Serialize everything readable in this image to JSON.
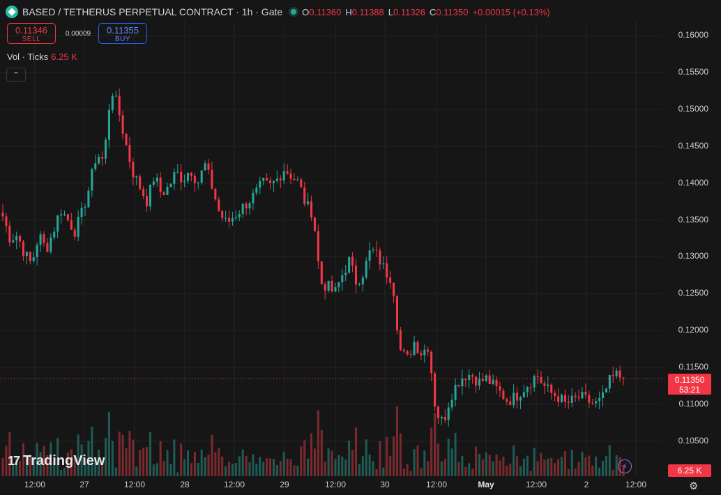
{
  "header": {
    "symbol_title": "BASED / TETHERUS PERPETUAL CONTRACT · 1h · Gate",
    "ohlc": {
      "o_label": "O",
      "o": "0.11360",
      "h_label": "H",
      "h": "0.11388",
      "l_label": "L",
      "l": "0.11326",
      "c_label": "C",
      "c": "0.11350",
      "change": "+0.00015 (+0.13%)"
    }
  },
  "trade": {
    "sell_price": "0.11346",
    "sell_label": "SELL",
    "spread": "0.00009",
    "buy_price": "0.11355",
    "buy_label": "BUY"
  },
  "volume_legend": {
    "label": "Vol · Ticks",
    "value": "6.25 K"
  },
  "colors": {
    "up": "#26a69a",
    "down": "#f23645",
    "up_vol": "#1f5b54",
    "down_vol": "#7a2a2e",
    "background": "#161616",
    "grid": "#242424"
  },
  "price_axis": {
    "labels": [
      "0.16000",
      "0.15500",
      "0.15000",
      "0.14500",
      "0.14000",
      "0.13500",
      "0.13000",
      "0.12500",
      "0.12000",
      "0.11500",
      "0.11000",
      "0.10500"
    ]
  },
  "time_axis": {
    "labels": [
      "12:00",
      "27",
      "12:00",
      "28",
      "12:00",
      "29",
      "12:00",
      "30",
      "12:00",
      "May",
      "12:00",
      "2",
      "12:00"
    ]
  },
  "last_price": {
    "price": "0.11350",
    "countdown": "53:21"
  },
  "volume_tag": "6.25 K",
  "branding": {
    "logo_text": "TradingView",
    "logo_mark": "17"
  },
  "icons": {
    "coin": "based-coin-icon",
    "status": "market-open-dot-icon",
    "collapse": "chevron-up-icon",
    "bolt": "lightning-icon",
    "settings": "gear-icon"
  },
  "chart_data": {
    "type": "candlestick",
    "interval": "1h",
    "ylim": [
      0.1025,
      0.1625
    ],
    "y_ticks": [
      0.16,
      0.155,
      0.15,
      0.145,
      0.14,
      0.135,
      0.13,
      0.125,
      0.12,
      0.115,
      0.11,
      0.105
    ],
    "x_tick_labels": [
      "12:00",
      "27",
      "12:00",
      "28",
      "12:00",
      "29",
      "12:00",
      "30",
      "12:00",
      "May",
      "12:00",
      "2",
      "12:00"
    ],
    "close_anchors": [
      0.1355,
      0.1325,
      0.133,
      0.1305,
      0.129,
      0.133,
      0.131,
      0.1335,
      0.1365,
      0.135,
      0.1335,
      0.136,
      0.1395,
      0.144,
      0.143,
      0.153,
      0.15,
      0.1455,
      0.1415,
      0.1395,
      0.1375,
      0.141,
      0.1385,
      0.1395,
      0.1415,
      0.1405,
      0.142,
      0.14,
      0.1425,
      0.1395,
      0.136,
      0.1345,
      0.1355,
      0.1365,
      0.1375,
      0.1385,
      0.14,
      0.1395,
      0.1405,
      0.142,
      0.141,
      0.14,
      0.137,
      0.136,
      0.1265,
      0.126,
      0.125,
      0.1275,
      0.1295,
      0.1265,
      0.128,
      0.131,
      0.13,
      0.128,
      0.127,
      0.1175,
      0.116,
      0.1185,
      0.117,
      0.118,
      0.109,
      0.1075,
      0.111,
      0.113,
      0.114,
      0.114,
      0.113,
      0.1135,
      0.1125,
      0.1115,
      0.1105,
      0.111,
      0.112,
      0.113,
      0.114,
      0.1125,
      0.1115,
      0.111,
      0.11,
      0.1105,
      0.111,
      0.1105,
      0.11,
      0.1105,
      0.113,
      0.114,
      0.1135
    ],
    "last": 0.1135,
    "volume_peak_ticks": 6250
  }
}
